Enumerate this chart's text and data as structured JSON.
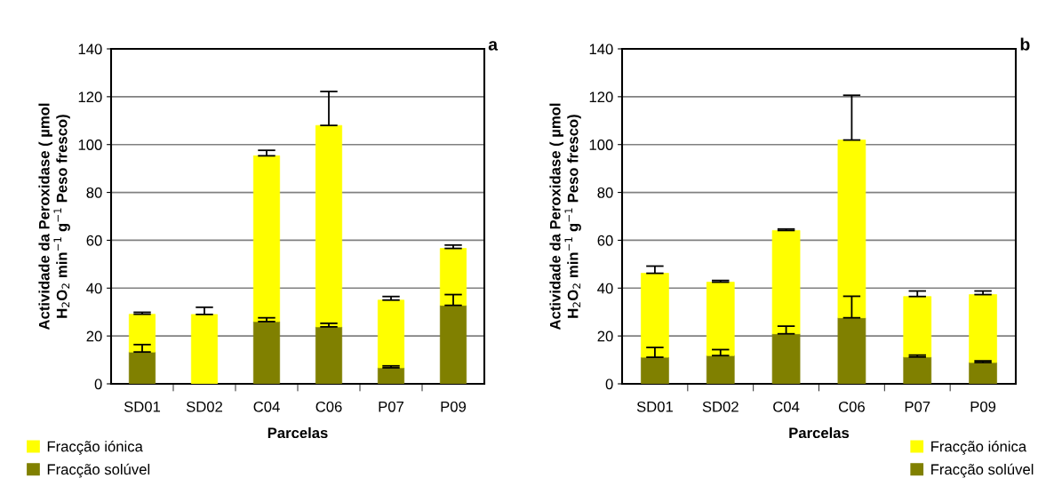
{
  "chart_data": [
    {
      "type": "bar",
      "stacked": true,
      "categories": [
        "SD01",
        "SD02",
        "C04",
        "C06",
        "P07",
        "P09"
      ],
      "xlabel": "Parcelas",
      "ylabel": "Actividade da Peroxidase ( µmol H$_{2}$O$_{2}$ min$^{−1}$ g$^{−1}$ Peso fresco)",
      "ylim": [
        0,
        140
      ],
      "yticks": [
        0,
        20,
        40,
        60,
        80,
        100,
        120,
        140
      ],
      "grid": "y",
      "legend": "bottom left",
      "annotations": [
        "a"
      ],
      "series": [
        {
          "name": "Fracção solúvel",
          "color": "#808000",
          "values": [
            13.3,
            0,
            26,
            23.8,
            6.7,
            32.8
          ],
          "errors": [
            [
              13.3,
              16.4
            ],
            null,
            [
              26,
              27.6
            ],
            [
              23.8,
              25.3
            ],
            [
              6.7,
              7.5
            ],
            [
              32.8,
              37.3
            ]
          ]
        },
        {
          "name": "Fracção iónica",
          "color": "#ffff00",
          "values": [
            15.8,
            29,
            69.3,
            84.2,
            28.3,
            23.8
          ],
          "errors": [
            [
              29.1,
              29.9
            ],
            [
              29,
              32
            ],
            [
              95.3,
              97.6
            ],
            [
              108,
              122.2
            ],
            [
              35,
              36.5
            ],
            [
              56.6,
              58
            ]
          ]
        }
      ]
    },
    {
      "type": "bar",
      "stacked": true,
      "categories": [
        "SD01",
        "SD02",
        "C04",
        "C06",
        "P07",
        "P09"
      ],
      "xlabel": "Parcelas",
      "ylabel": "Actividade da Peroxidase ( µmol H$_{2}$O$_{2}$ min$^{−1}$ g$^{−1}$ Peso fresco)",
      "ylim": [
        0,
        140
      ],
      "yticks": [
        0,
        20,
        40,
        60,
        80,
        100,
        120,
        140
      ],
      "grid": "y",
      "legend": "bottom right",
      "annotations": [
        "b"
      ],
      "series": [
        {
          "name": "Fracção solúvel",
          "color": "#808000",
          "values": [
            11.1,
            11.8,
            20.9,
            27.6,
            11.2,
            8.9
          ],
          "errors": [
            [
              11.1,
              15.2
            ],
            [
              11.8,
              14.3
            ],
            [
              20.9,
              24.1
            ],
            [
              27.6,
              36.6
            ],
            [
              11.2,
              12
            ],
            [
              8.9,
              9.6
            ]
          ]
        },
        {
          "name": "Fracção iónica",
          "color": "#ffff00",
          "values": [
            35.1,
            30.7,
            43.2,
            74.3,
            25.3,
            28.4
          ],
          "errors": [
            [
              46.2,
              49.2
            ],
            [
              42.5,
              43.2
            ],
            [
              64.1,
              64.7
            ],
            [
              101.9,
              120.6
            ],
            [
              36.5,
              38.8
            ],
            [
              37.3,
              38.8
            ]
          ]
        }
      ]
    }
  ]
}
